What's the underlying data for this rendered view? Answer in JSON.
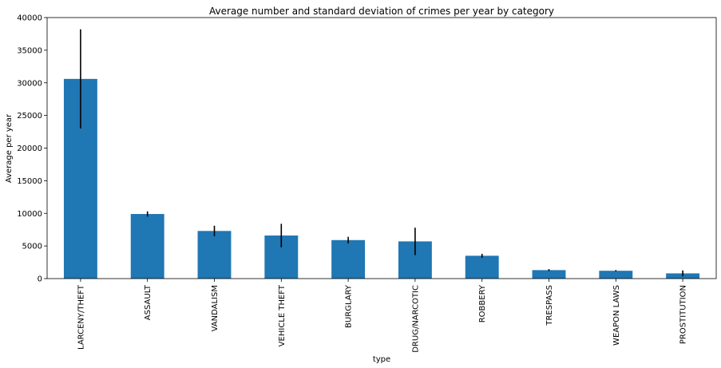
{
  "chart_data": {
    "type": "bar",
    "title": "Average number and standard deviation of crimes per year by category",
    "xlabel": "type",
    "ylabel": "Average per year",
    "categories": [
      "LARCENY/THEFT",
      "ASSAULT",
      "VANDALISM",
      "VEHICLE THEFT",
      "BURGLARY",
      "DRUG/NARCOTIC",
      "ROBBERY",
      "TRESPASS",
      "WEAPON LAWS",
      "PROSTITUTION"
    ],
    "values": [
      30600,
      9900,
      7300,
      6600,
      5900,
      5700,
      3500,
      1300,
      1200,
      800
    ],
    "error": [
      7600,
      400,
      800,
      1800,
      500,
      2100,
      300,
      150,
      100,
      450
    ],
    "ylim": [
      0,
      40000
    ],
    "yticks": [
      0,
      5000,
      10000,
      15000,
      20000,
      25000,
      30000,
      35000,
      40000
    ],
    "grid": false,
    "bar_color": "#1f77b4",
    "error_color": "#000000"
  }
}
